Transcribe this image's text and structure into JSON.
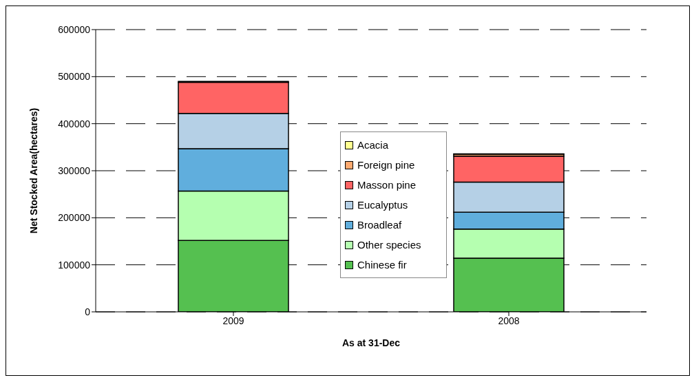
{
  "chart_data": {
    "type": "bar",
    "stacked": true,
    "xlabel": "As at 31-Dec",
    "ylabel": "Net Stocked Area(hectares)",
    "categories": [
      "2009",
      "2008"
    ],
    "series": [
      {
        "name": "Chinese fir",
        "color": "#55c050",
        "values": [
          152000,
          114000
        ]
      },
      {
        "name": "Other species",
        "color": "#b5ffb0",
        "values": [
          105000,
          62000
        ]
      },
      {
        "name": "Broadleaf",
        "color": "#60aedd",
        "values": [
          90000,
          36000
        ]
      },
      {
        "name": "Eucalyptus",
        "color": "#b5d0e6",
        "values": [
          75000,
          64000
        ]
      },
      {
        "name": "Masson pine",
        "color": "#ff6464",
        "values": [
          66000,
          55000
        ]
      },
      {
        "name": "Foreign pine",
        "color": "#ffaa70",
        "values": [
          null,
          4000
        ]
      },
      {
        "name": "Acacia",
        "color": "#ffff90",
        "values": [
          2000,
          1000
        ]
      }
    ],
    "ylim": [
      0,
      600000
    ],
    "yticks": [
      0,
      100000,
      200000,
      300000,
      400000,
      500000,
      600000
    ],
    "grid": "y",
    "legend": "center"
  }
}
